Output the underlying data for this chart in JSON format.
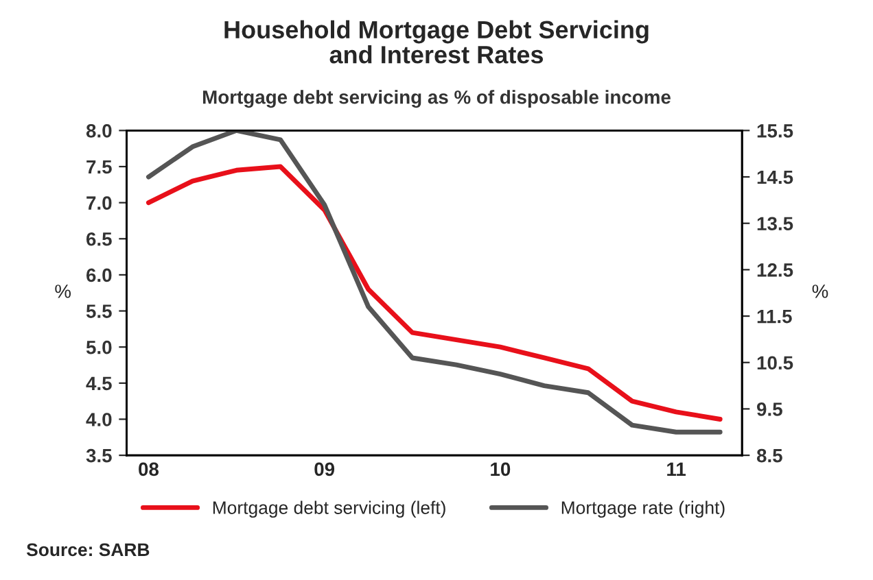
{
  "chart_data": {
    "type": "line",
    "title": "Household Mortgage Debt Servicing\nand Interest Rates",
    "subtitle": "Mortgage debt servicing as % of disposable income",
    "ylabel": "%",
    "y2label": "%",
    "categories": [
      "08",
      null,
      null,
      null,
      "09",
      null,
      null,
      null,
      "10",
      null,
      null,
      null,
      "11",
      null
    ],
    "series": [
      {
        "name": "Mortgage debt servicing (left)",
        "color": "#e8101a",
        "values": [
          7.0,
          7.3,
          7.45,
          7.5,
          6.9,
          5.8,
          5.2,
          5.1,
          5.0,
          4.85,
          4.7,
          4.25,
          4.1,
          4.0
        ]
      },
      {
        "name": "Mortgage rate (right)",
        "color": "#555555",
        "axis": "y2",
        "values": [
          14.5,
          15.15,
          15.5,
          15.3,
          13.9,
          11.7,
          10.6,
          10.45,
          10.25,
          10.0,
          9.85,
          9.15,
          9.0,
          9.0
        ]
      }
    ],
    "ylim": [
      3.5,
      8.0
    ],
    "yticks": [
      {
        "value": 3.5,
        "label": "3.5"
      },
      {
        "value": 4.0,
        "label": "4.0"
      },
      {
        "value": 4.5,
        "label": "4.5"
      },
      {
        "value": 5.0,
        "label": "5.0"
      },
      {
        "value": 5.5,
        "label": "5.5"
      },
      {
        "value": 6.0,
        "label": "6.0"
      },
      {
        "value": 6.5,
        "label": "6.5"
      },
      {
        "value": 7.0,
        "label": "7.0"
      },
      {
        "value": 7.5,
        "label": "7.5"
      },
      {
        "value": 8.0,
        "label": "8.0"
      }
    ],
    "y2lim": [
      8.5,
      15.5
    ],
    "y2ticks": [
      8.5,
      9.5,
      10.5,
      11.5,
      12.5,
      13.5,
      14.5,
      15.5
    ],
    "legend": "bottom",
    "grid": false,
    "marker": "none",
    "line_style": "solid",
    "annotations": [
      "Source: SARB"
    ]
  }
}
